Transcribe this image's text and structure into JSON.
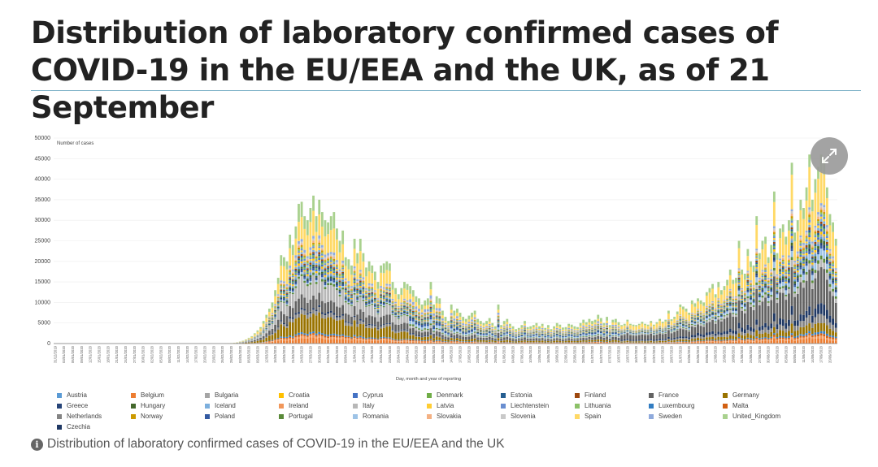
{
  "page": {
    "title": "Distribution of laboratory confirmed cases of COVID-19 in the EU/EEA and the UK, as of 21 September",
    "caption": "Distribution of laboratory confirmed cases of COVID-19 in the EU/EEA and the UK",
    "expand_icon": "expand-arrows-icon",
    "info_icon": "info-icon",
    "info_glyph": "i"
  },
  "chart_data": {
    "type": "bar",
    "stacked": true,
    "ylabel": "Number of cases",
    "xlabel": "Day, month and year of reporting",
    "ylim": [
      0,
      50000
    ],
    "yticks": [
      0,
      5000,
      10000,
      15000,
      20000,
      25000,
      30000,
      35000,
      40000,
      45000,
      50000
    ],
    "x_start": "31/12/2019",
    "x_end": "20/09/2020",
    "x_tick_labels": [
      "31/12/2019",
      "03/01/2020",
      "06/01/2020",
      "09/01/2020",
      "12/01/2020",
      "15/01/2020",
      "18/01/2020",
      "21/01/2020",
      "24/01/2020",
      "27/01/2020",
      "30/01/2020",
      "02/02/2020",
      "05/02/2020",
      "08/02/2020",
      "11/02/2020",
      "14/02/2020",
      "17/02/2020",
      "20/02/2020",
      "23/02/2020",
      "26/02/2020",
      "29/02/2020",
      "03/03/2020",
      "06/03/2020",
      "09/03/2020",
      "12/03/2020",
      "15/03/2020",
      "18/03/2020",
      "21/03/2020",
      "24/03/2020",
      "27/03/2020",
      "30/03/2020",
      "02/04/2020",
      "05/04/2020",
      "08/04/2020",
      "11/04/2020",
      "14/04/2020",
      "17/04/2020",
      "20/04/2020",
      "23/04/2020",
      "26/04/2020",
      "29/04/2020",
      "02/05/2020",
      "05/05/2020",
      "08/05/2020",
      "11/05/2020",
      "14/05/2020",
      "17/05/2020",
      "20/05/2020",
      "23/05/2020",
      "26/05/2020",
      "29/05/2020",
      "01/06/2020",
      "04/06/2020",
      "07/06/2020",
      "10/06/2020",
      "13/06/2020",
      "16/06/2020",
      "19/06/2020",
      "22/06/2020",
      "25/06/2020",
      "28/06/2020",
      "01/07/2020",
      "04/07/2020",
      "07/07/2020",
      "10/07/2020",
      "13/07/2020",
      "16/07/2020",
      "19/07/2020",
      "22/07/2020",
      "25/07/2020",
      "28/07/2020",
      "31/07/2020",
      "03/08/2020",
      "06/08/2020",
      "09/08/2020",
      "12/08/2020",
      "15/08/2020",
      "18/08/2020",
      "21/08/2020",
      "24/08/2020",
      "27/08/2020",
      "30/08/2020",
      "02/09/2020",
      "05/09/2020",
      "08/09/2020",
      "11/09/2020",
      "14/09/2020",
      "17/09/2020",
      "20/09/2020"
    ],
    "countries": [
      {
        "name": "Austria",
        "color": "#5b9bd5"
      },
      {
        "name": "Belgium",
        "color": "#ed7d31"
      },
      {
        "name": "Bulgaria",
        "color": "#a5a5a5"
      },
      {
        "name": "Croatia",
        "color": "#ffc000"
      },
      {
        "name": "Cyprus",
        "color": "#4472c4"
      },
      {
        "name": "Denmark",
        "color": "#70ad47"
      },
      {
        "name": "Estonia",
        "color": "#255e91"
      },
      {
        "name": "Finland",
        "color": "#9e480e"
      },
      {
        "name": "France",
        "color": "#636363"
      },
      {
        "name": "Germany",
        "color": "#997300"
      },
      {
        "name": "Greece",
        "color": "#264478"
      },
      {
        "name": "Hungary",
        "color": "#43682b"
      },
      {
        "name": "Iceland",
        "color": "#7cafdd"
      },
      {
        "name": "Ireland",
        "color": "#f1975a"
      },
      {
        "name": "Italy",
        "color": "#b7b7b7"
      },
      {
        "name": "Latvia",
        "color": "#ffcd33"
      },
      {
        "name": "Liechtenstein",
        "color": "#698ed0"
      },
      {
        "name": "Lithuania",
        "color": "#8cc168"
      },
      {
        "name": "Luxembourg",
        "color": "#327dc2"
      },
      {
        "name": "Malta",
        "color": "#d26012"
      },
      {
        "name": "Netherlands",
        "color": "#848484"
      },
      {
        "name": "Norway",
        "color": "#cc9a00"
      },
      {
        "name": "Poland",
        "color": "#335aa1"
      },
      {
        "name": "Portugal",
        "color": "#5a8a39"
      },
      {
        "name": "Romania",
        "color": "#9dc3e6"
      },
      {
        "name": "Slovakia",
        "color": "#f4b183"
      },
      {
        "name": "Slovenia",
        "color": "#c9c9c9"
      },
      {
        "name": "Spain",
        "color": "#ffd966"
      },
      {
        "name": "Sweden",
        "color": "#8faadc"
      },
      {
        "name": "United_Kingdom",
        "color": "#a9d18e"
      },
      {
        "name": "Czechia",
        "color": "#1f3864"
      }
    ],
    "daily_totals": [
      0,
      0,
      0,
      0,
      0,
      0,
      0,
      0,
      0,
      0,
      0,
      0,
      0,
      0,
      0,
      0,
      0,
      0,
      0,
      0,
      0,
      0,
      0,
      0,
      0,
      0,
      0,
      0,
      0,
      0,
      0,
      0,
      0,
      0,
      0,
      0,
      0,
      0,
      0,
      0,
      0,
      0,
      0,
      0,
      0,
      0,
      0,
      0,
      0,
      0,
      0,
      0,
      0,
      0,
      0,
      0,
      0,
      0,
      50,
      80,
      120,
      200,
      300,
      500,
      700,
      1000,
      1400,
      1800,
      2500,
      3200,
      4000,
      5500,
      7000,
      8500,
      10000,
      13000,
      16000,
      21500,
      21000,
      20000,
      26500,
      24000,
      28500,
      34000,
      34500,
      31000,
      30000,
      33000,
      36000,
      31000,
      35000,
      32000,
      30000,
      29500,
      31000,
      32000,
      28000,
      25000,
      27500,
      21000,
      20500,
      19000,
      25500,
      22000,
      25500,
      22000,
      18500,
      20000,
      19000,
      17500,
      15000,
      19000,
      19500,
      20000,
      19500,
      15000,
      13500,
      12000,
      13500,
      15000,
      14500,
      14000,
      13000,
      11500,
      11000,
      9500,
      10500,
      11000,
      15000,
      9500,
      11500,
      11000,
      8000,
      6500,
      5500,
      9500,
      8000,
      8500,
      7500,
      6500,
      6000,
      6800,
      7500,
      8000,
      6000,
      5500,
      5000,
      5500,
      6200,
      5000,
      4200,
      9500,
      4500,
      5500,
      6000,
      4800,
      4200,
      3500,
      3800,
      4500,
      5500,
      4000,
      4200,
      4500,
      5000,
      4200,
      4800,
      3800,
      4500,
      3500,
      4200,
      5000,
      4600,
      3900,
      4000,
      4800,
      4600,
      4200,
      4000,
      5000,
      5800,
      5200,
      6000,
      5500,
      5800,
      7000,
      6200,
      5000,
      6500,
      4500,
      5800,
      6000,
      5200,
      4500,
      4800,
      5800,
      4800,
      4600,
      4500,
      4800,
      5300,
      4800,
      4600,
      5500,
      4600,
      5200,
      6000,
      5300,
      5800,
      8000,
      5900,
      6500,
      7800,
      9500,
      9000,
      8500,
      7500,
      10500,
      9800,
      11000,
      10500,
      10000,
      12500,
      13500,
      14500,
      12000,
      15000,
      13000,
      14000,
      15500,
      18000,
      15500,
      16000,
      25000,
      18000,
      17000,
      23000,
      20000,
      19000,
      31000,
      22000,
      25000,
      26000,
      21000,
      24000,
      37000,
      22000,
      28000,
      29000,
      26000,
      30000,
      44000,
      27000,
      30000,
      35000,
      33000,
      38000,
      46000,
      35000,
      40000,
      43000,
      46000,
      45000,
      38000,
      31500,
      29500,
      25500
    ]
  }
}
